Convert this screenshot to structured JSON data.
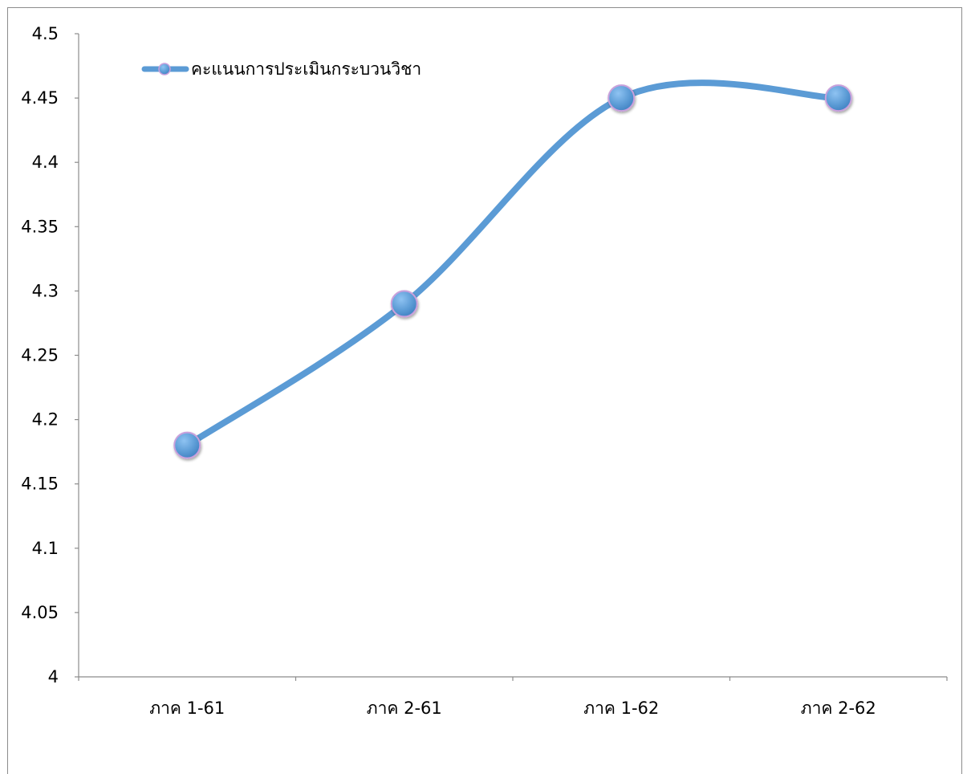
{
  "chart_data": {
    "type": "line",
    "categories": [
      "ภาค 1-61",
      "ภาค 2-61",
      "ภาค 1-62",
      "ภาค 2-62"
    ],
    "series": [
      {
        "name": "คะแนนการประเมินกระบวนวิชา",
        "values": [
          4.18,
          4.29,
          4.45,
          4.45
        ],
        "color": "#5b9bd5",
        "marker_edge_color": "#c9a0dc",
        "smooth": true
      }
    ],
    "yticks": [
      "4",
      "4.05",
      "4.1",
      "4.15",
      "4.2",
      "4.25",
      "4.3",
      "4.35",
      "4.4",
      "4.45",
      "4.5"
    ],
    "ylim": [
      4,
      4.5
    ],
    "grid": false,
    "legend_position": "top-left"
  }
}
